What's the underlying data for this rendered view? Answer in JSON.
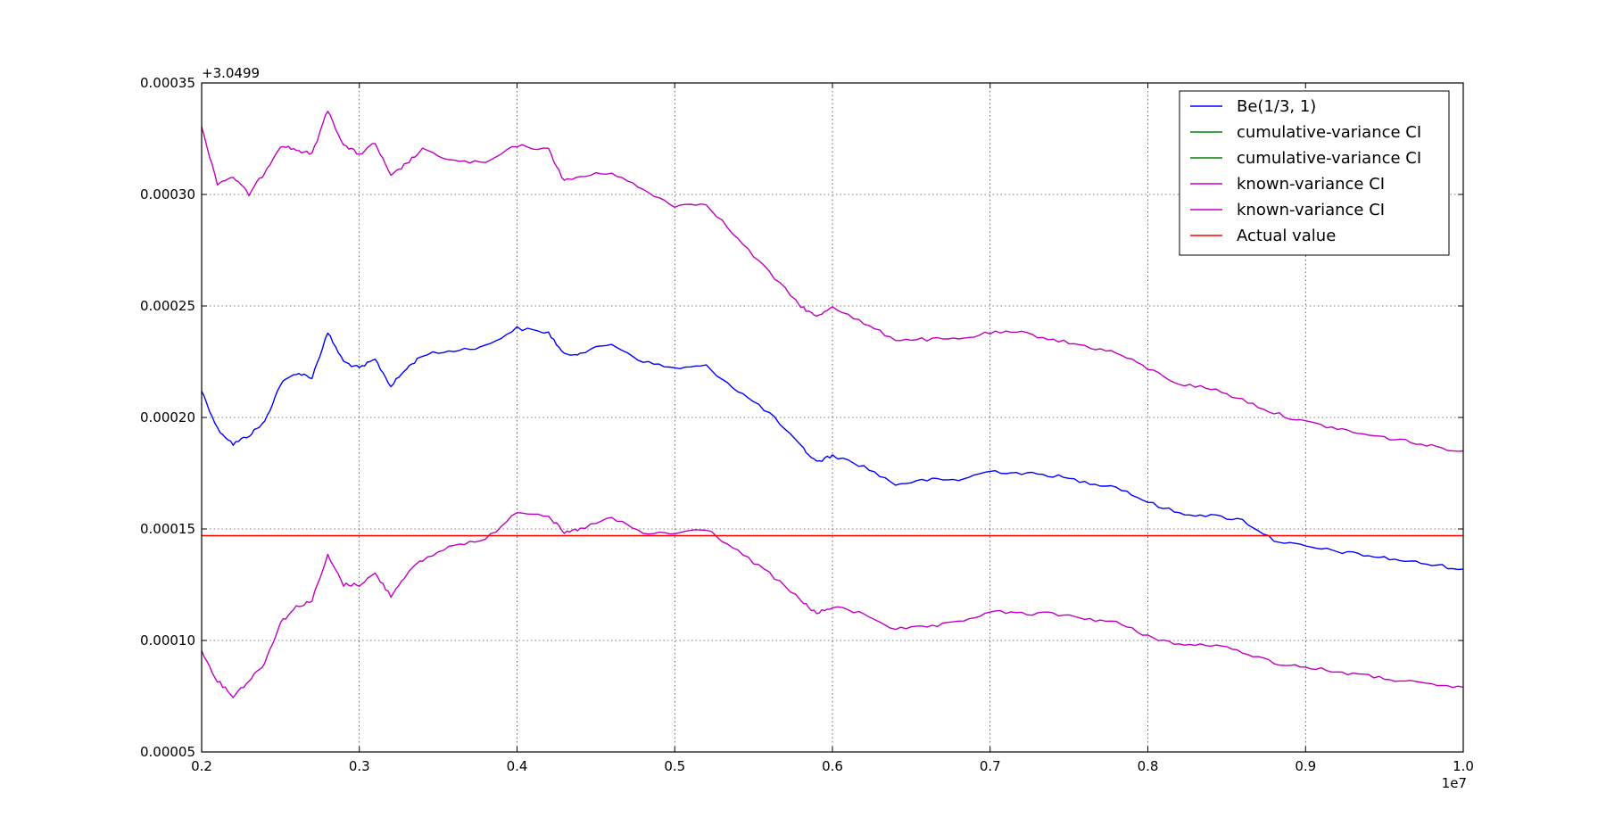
{
  "chart_data": {
    "type": "line",
    "title": "",
    "xlabel": "",
    "ylabel": "",
    "x_offset_label": "1e7",
    "y_offset_label": "+3.0499",
    "xlim": [
      0.2,
      1.0
    ],
    "ylim": [
      5e-05,
      0.00035
    ],
    "x_ticks": [
      "0.2",
      "0.3",
      "0.4",
      "0.5",
      "0.6",
      "0.7",
      "0.8",
      "0.9",
      "1.0"
    ],
    "y_ticks": [
      "0.00005",
      "0.00010",
      "0.00015",
      "0.00020",
      "0.00025",
      "0.00030",
      "0.00035"
    ],
    "grid": true,
    "legend_position": "top-right",
    "colors": {
      "series_blue": "#0000ff",
      "series_green": "#008000",
      "series_magenta": "#bf00bf",
      "series_red": "#ff0000"
    },
    "series": [
      {
        "name": "Be(1/3, 1)",
        "color": "#0000ff",
        "x": [
          0.2,
          0.21,
          0.22,
          0.23,
          0.24,
          0.25,
          0.26,
          0.27,
          0.28,
          0.29,
          0.3,
          0.31,
          0.32,
          0.33,
          0.34,
          0.36,
          0.38,
          0.4,
          0.42,
          0.43,
          0.44,
          0.46,
          0.48,
          0.5,
          0.52,
          0.54,
          0.56,
          0.58,
          0.59,
          0.6,
          0.62,
          0.64,
          0.66,
          0.68,
          0.7,
          0.72,
          0.74,
          0.76,
          0.78,
          0.8,
          0.82,
          0.84,
          0.86,
          0.88,
          0.9,
          0.92,
          0.94,
          0.96,
          0.98,
          1.0
        ],
        "y": [
          0.000212,
          0.000195,
          0.000188,
          0.000192,
          0.000198,
          0.000215,
          0.00022,
          0.000218,
          0.000238,
          0.000225,
          0.000222,
          0.000226,
          0.000214,
          0.000222,
          0.000228,
          0.00023,
          0.000232,
          0.00024,
          0.000238,
          0.000228,
          0.000229,
          0.000233,
          0.000225,
          0.000222,
          0.000223,
          0.000212,
          0.000202,
          0.000187,
          0.00018,
          0.000183,
          0.000178,
          0.00017,
          0.000172,
          0.000172,
          0.000176,
          0.000175,
          0.000174,
          0.000171,
          0.000169,
          0.000162,
          0.000157,
          0.000156,
          0.000154,
          0.000145,
          0.000142,
          0.00014,
          0.000138,
          0.000136,
          0.000134,
          0.000132
        ]
      },
      {
        "name": "cumulative-variance CI",
        "color": "#008000",
        "x": [],
        "y": []
      },
      {
        "name": "cumulative-variance CI",
        "color": "#008000",
        "x": [],
        "y": []
      },
      {
        "name": "known-variance CI",
        "color": "#bf00bf",
        "x": [
          0.2,
          0.21,
          0.22,
          0.23,
          0.24,
          0.25,
          0.26,
          0.27,
          0.28,
          0.29,
          0.3,
          0.31,
          0.32,
          0.33,
          0.34,
          0.36,
          0.38,
          0.4,
          0.42,
          0.43,
          0.44,
          0.46,
          0.48,
          0.5,
          0.52,
          0.54,
          0.56,
          0.58,
          0.59,
          0.6,
          0.62,
          0.64,
          0.66,
          0.68,
          0.7,
          0.72,
          0.74,
          0.76,
          0.78,
          0.8,
          0.82,
          0.84,
          0.86,
          0.88,
          0.9,
          0.92,
          0.94,
          0.96,
          0.98,
          1.0
        ],
        "y": [
          0.00033,
          0.000305,
          0.000308,
          0.0003,
          0.00031,
          0.000322,
          0.00032,
          0.000318,
          0.000338,
          0.000322,
          0.000318,
          0.000323,
          0.000308,
          0.000314,
          0.00032,
          0.000315,
          0.000314,
          0.000322,
          0.00032,
          0.000306,
          0.000308,
          0.00031,
          0.000302,
          0.000295,
          0.000296,
          0.00028,
          0.000265,
          0.00025,
          0.000245,
          0.00025,
          0.000242,
          0.000235,
          0.000235,
          0.000235,
          0.000238,
          0.000238,
          0.000235,
          0.000232,
          0.000229,
          0.000222,
          0.000215,
          0.000213,
          0.000208,
          0.000202,
          0.000198,
          0.000195,
          0.000192,
          0.00019,
          0.000187,
          0.000185
        ]
      },
      {
        "name": "known-variance CI",
        "color": "#bf00bf",
        "x": [
          0.2,
          0.21,
          0.22,
          0.23,
          0.24,
          0.25,
          0.26,
          0.27,
          0.28,
          0.29,
          0.3,
          0.31,
          0.32,
          0.33,
          0.34,
          0.36,
          0.38,
          0.4,
          0.42,
          0.43,
          0.44,
          0.46,
          0.48,
          0.5,
          0.52,
          0.54,
          0.56,
          0.58,
          0.59,
          0.6,
          0.62,
          0.64,
          0.66,
          0.68,
          0.7,
          0.72,
          0.74,
          0.76,
          0.78,
          0.8,
          0.82,
          0.84,
          0.86,
          0.88,
          0.9,
          0.92,
          0.94,
          0.96,
          0.98,
          1.0
        ],
        "y": [
          9.5e-05,
          8.2e-05,
          7.5e-05,
          8.2e-05,
          9e-05,
          0.000108,
          0.000115,
          0.000118,
          0.000138,
          0.000125,
          0.000125,
          0.00013,
          0.00012,
          0.00013,
          0.000136,
          0.000143,
          0.000145,
          0.000158,
          0.000156,
          0.000148,
          0.00015,
          0.000155,
          0.000148,
          0.000148,
          0.00015,
          0.00014,
          0.00013,
          0.000118,
          0.000112,
          0.000115,
          0.000112,
          0.000105,
          0.000106,
          0.000108,
          0.000113,
          0.000112,
          0.000112,
          0.00011,
          0.000108,
          0.000102,
          9.8e-05,
          9.8e-05,
          9.5e-05,
          9e-05,
          8.8e-05,
          8.6e-05,
          8.4e-05,
          8.2e-05,
          8e-05,
          7.9e-05
        ]
      },
      {
        "name": "Actual value",
        "color": "#ff0000",
        "x": [
          0.2,
          1.0
        ],
        "y": [
          0.000147,
          0.000147
        ]
      }
    ]
  }
}
